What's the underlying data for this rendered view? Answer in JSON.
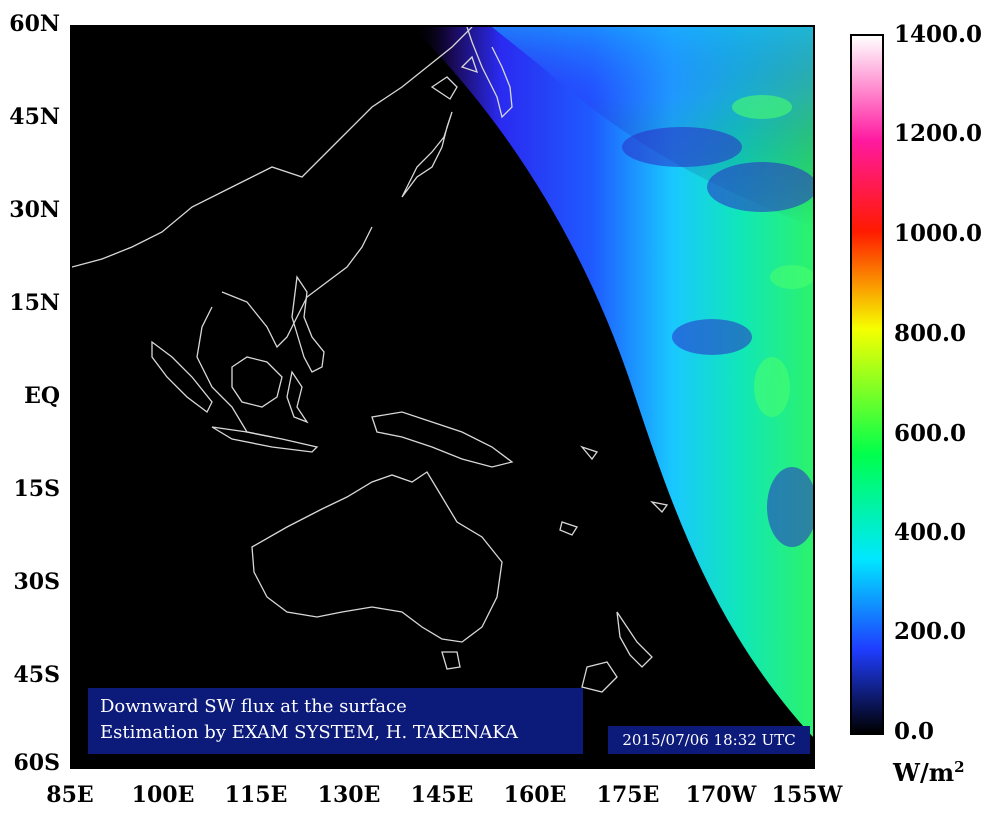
{
  "map": {
    "y_ticks": [
      "60N",
      "45N",
      "30N",
      "15N",
      "EQ",
      "15S",
      "30S",
      "45S",
      "60S"
    ],
    "x_ticks": [
      "85E",
      "100E",
      "115E",
      "130E",
      "145E",
      "160E",
      "175E",
      "170W",
      "155W"
    ],
    "title_line1": "Downward SW flux at the surface",
    "title_line2": "Estimation by EXAM SYSTEM,  H. TAKENAKA",
    "timestamp": "2015/07/06 18:32 UTC"
  },
  "colorbar": {
    "ticks": [
      "1400.0",
      "1200.0",
      "1000.0",
      "800.0",
      "600.0",
      "400.0",
      "200.0",
      "0.0"
    ],
    "unit_base": "W/m",
    "unit_exp": "2"
  },
  "colors": {
    "night": "#000000",
    "coast": "#d8d8d8",
    "cb_low": "#000000",
    "cb_blue": "#1f3dff",
    "cb_cyan": "#00e8ff",
    "cb_green": "#00ff4c",
    "cb_yellow": "#f6ff00",
    "cb_red": "#ff1a00",
    "cb_magenta": "#ff1aa0",
    "cb_top": "#ffffff"
  }
}
